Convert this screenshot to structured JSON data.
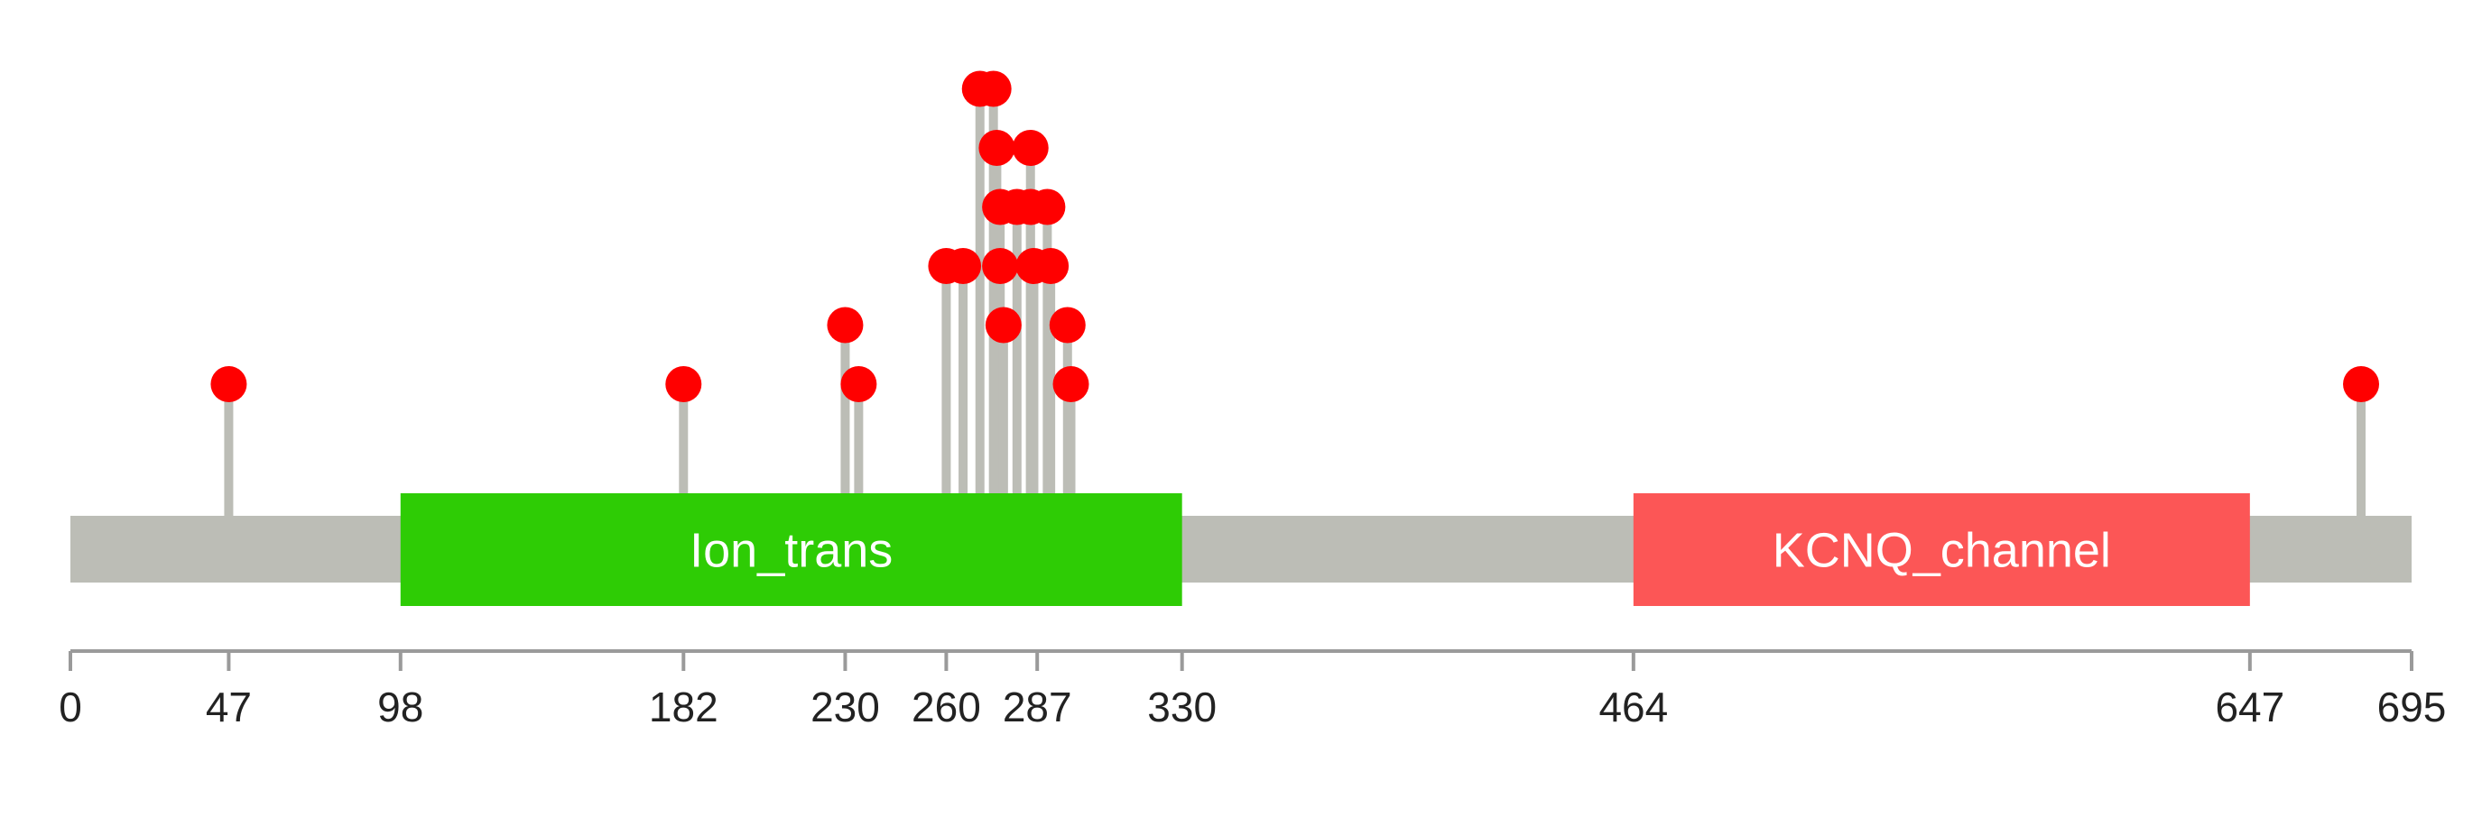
{
  "protein": {
    "length": 695,
    "backbone_color": "#bcbdb6"
  },
  "domains": [
    {
      "name": "Ion_trans",
      "start": 98,
      "end": 330,
      "color": "#2ecc05"
    },
    {
      "name": "KCNQ_channel",
      "start": 464,
      "end": 647,
      "color": "#fc5656"
    }
  ],
  "axis": {
    "ticks": [
      0,
      47,
      98,
      182,
      230,
      260,
      287,
      330,
      464,
      647,
      695
    ]
  },
  "mutations": {
    "color": "#ff0000",
    "stem_color": "#bcbdb6",
    "points": [
      {
        "pos": 47,
        "count": 1
      },
      {
        "pos": 182,
        "count": 1
      },
      {
        "pos": 230,
        "count": 2
      },
      {
        "pos": 234,
        "count": 1
      },
      {
        "pos": 260,
        "count": 3
      },
      {
        "pos": 265,
        "count": 3
      },
      {
        "pos": 270,
        "count": 6
      },
      {
        "pos": 274,
        "count": 6
      },
      {
        "pos": 275,
        "count": 5
      },
      {
        "pos": 276,
        "count": 4
      },
      {
        "pos": 276,
        "count": 3
      },
      {
        "pos": 277,
        "count": 2
      },
      {
        "pos": 281,
        "count": 4
      },
      {
        "pos": 285,
        "count": 4
      },
      {
        "pos": 285,
        "count": 5
      },
      {
        "pos": 286,
        "count": 3
      },
      {
        "pos": 290,
        "count": 4
      },
      {
        "pos": 291,
        "count": 3
      },
      {
        "pos": 296,
        "count": 2
      },
      {
        "pos": 297,
        "count": 1
      },
      {
        "pos": 680,
        "count": 1
      }
    ]
  }
}
